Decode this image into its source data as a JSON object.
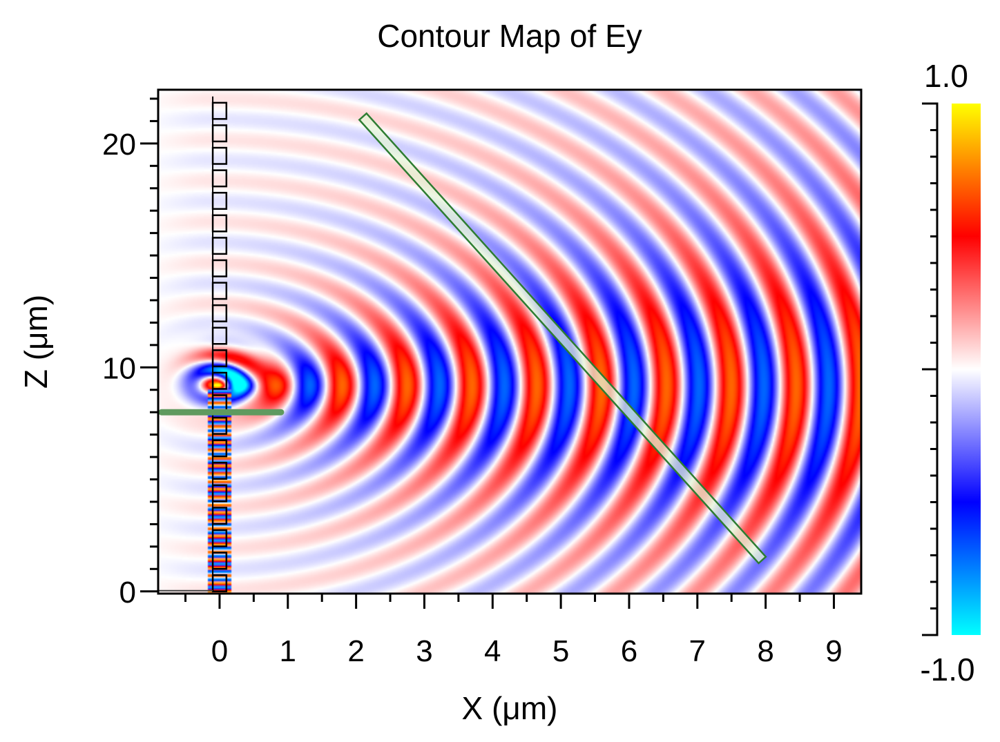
{
  "chart_data": {
    "type": "heatmap",
    "title": "Contour Map of Ey",
    "xlabel": "X (μm)",
    "ylabel": "Z (μm)",
    "xlim": [
      -0.9,
      9.4
    ],
    "ylim": [
      -0.1,
      22.4
    ],
    "x_ticks": [
      0,
      1,
      2,
      3,
      4,
      5,
      6,
      7,
      8,
      9
    ],
    "x_tick_labels": [
      "0",
      "1",
      "2",
      "3",
      "4",
      "5",
      "6",
      "7",
      "8",
      "9"
    ],
    "y_ticks": [
      0,
      10,
      20
    ],
    "y_tick_labels": [
      "0",
      "10",
      "20"
    ],
    "colorbar": {
      "min": -1.0,
      "max": 1.0,
      "min_label": "-1.0",
      "max_label": "1.0",
      "colormap": [
        "#00ffff",
        "#0000ff",
        "#ffffff",
        "#ff0000",
        "#ffff00"
      ]
    },
    "field": {
      "source_x": -0.1,
      "source_z": 9.2,
      "wavelength_um": 0.95
    },
    "overlays": {
      "waveguide_grating": {
        "x": 0,
        "z_start": 0,
        "z_end": 22.1,
        "segments": 22
      },
      "horizontal_bar": {
        "x_start": -0.85,
        "x_end": 0.9,
        "z": 8.0,
        "color": "#5f9a5f"
      },
      "diagonal_strip": {
        "x_start": 2.1,
        "z_start": 21.2,
        "x_end": 7.95,
        "z_end": 1.4,
        "color": "#2e7d32"
      }
    },
    "grid": false,
    "legend": "colorbar-right"
  }
}
